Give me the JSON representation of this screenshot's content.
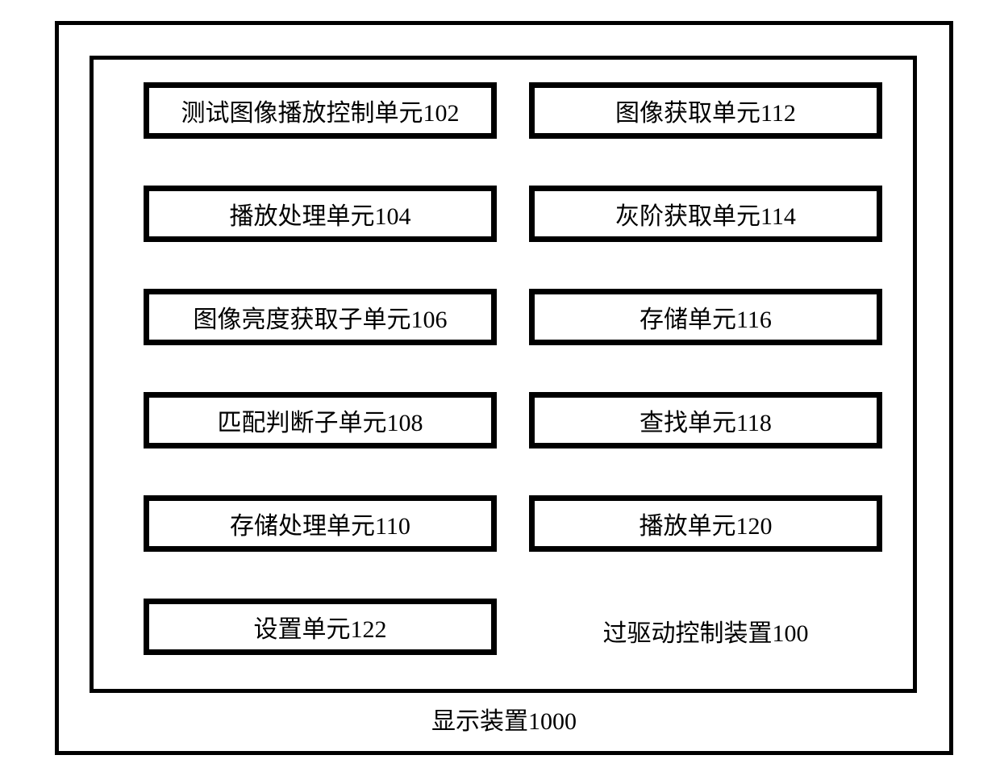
{
  "diagram": {
    "type": "block-diagram",
    "background_color": "#ffffff",
    "border_color": "#000000",
    "text_color": "#000000",
    "outer_border_width": 5,
    "inner_border_width": 5,
    "box_border_width": 7,
    "font_size": 30,
    "font_family": "SimSun",
    "outer_container": {
      "label": "显示装置1000"
    },
    "inner_container": {
      "label": "过驱动控制装置100"
    },
    "units": {
      "left_column": [
        {
          "label": "测试图像播放控制单元102"
        },
        {
          "label": "播放处理单元104"
        },
        {
          "label": "图像亮度获取子单元106"
        },
        {
          "label": "匹配判断子单元108"
        },
        {
          "label": "存储处理单元110"
        },
        {
          "label": "设置单元122"
        }
      ],
      "right_column": [
        {
          "label": "图像获取单元112"
        },
        {
          "label": "灰阶获取单元114"
        },
        {
          "label": "存储单元116"
        },
        {
          "label": "查找单元118"
        },
        {
          "label": "播放单元120"
        }
      ]
    }
  }
}
